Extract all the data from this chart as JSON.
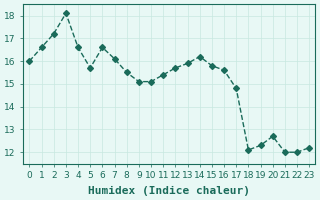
{
  "x": [
    0,
    1,
    2,
    3,
    4,
    5,
    6,
    7,
    8,
    9,
    10,
    11,
    12,
    13,
    14,
    15,
    16,
    17,
    18,
    19,
    20,
    21,
    22,
    23
  ],
  "y": [
    16.0,
    16.6,
    17.2,
    18.1,
    16.6,
    15.7,
    16.6,
    16.1,
    15.5,
    15.1,
    15.1,
    15.4,
    15.7,
    15.9,
    16.2,
    15.8,
    15.6,
    14.8,
    12.1,
    12.3,
    12.7,
    12.0,
    12.0,
    12.2
  ],
  "line_color": "#1a6b5a",
  "marker": "D",
  "marker_size": 3,
  "bg_color": "#e8f8f5",
  "grid_color": "#c8e8e0",
  "xlabel": "Humidex (Indice chaleur)",
  "ylim": [
    11.5,
    18.5
  ],
  "xlim": [
    -0.5,
    23.5
  ],
  "yticks": [
    12,
    13,
    14,
    15,
    16,
    17,
    18
  ],
  "xtick_labels": [
    "0",
    "1",
    "2",
    "3",
    "4",
    "5",
    "6",
    "7",
    "8",
    "9",
    "10",
    "11",
    "12",
    "13",
    "14",
    "15",
    "16",
    "17",
    "18",
    "19",
    "20",
    "21",
    "22",
    "23"
  ],
  "title_color": "#1a6b5a",
  "axis_color": "#1a6b5a",
  "tick_color": "#1a6b5a",
  "label_fontsize": 8,
  "tick_fontsize": 6.5
}
